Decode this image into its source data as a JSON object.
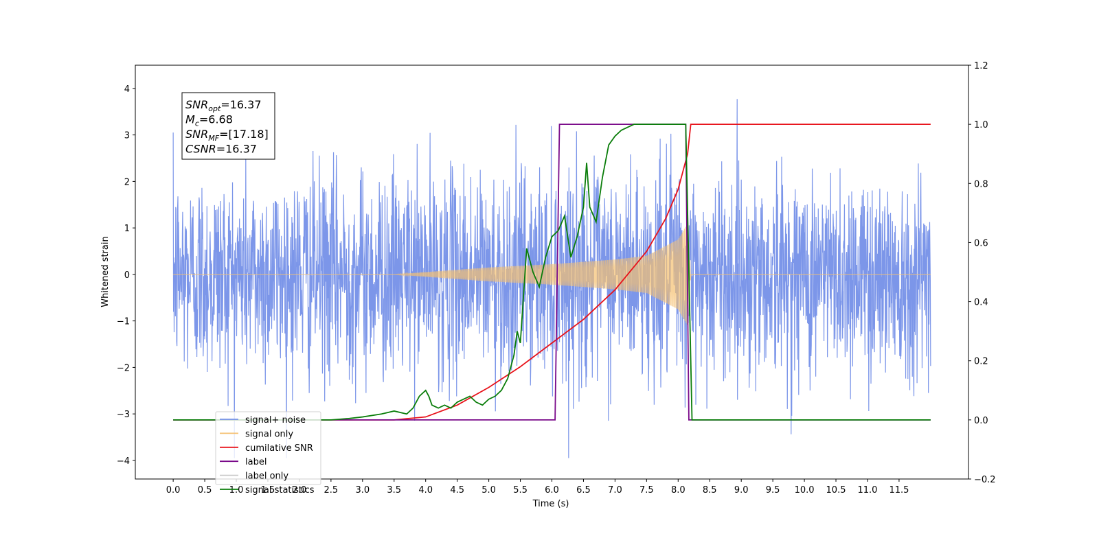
{
  "chart_data": {
    "type": "line",
    "xlabel": "Time (s)",
    "ylabel": "Whitened strain",
    "xlim": [
      -0.6,
      12.6
    ],
    "ylim": [
      -4.4,
      4.5
    ],
    "ylim_right": [
      -0.2,
      1.2
    ],
    "x_ticks": [
      "0.0",
      "0.5",
      "1.0",
      "1.5",
      "2.0",
      "2.5",
      "3.0",
      "3.5",
      "4.0",
      "4.5",
      "5.0",
      "5.5",
      "6.0",
      "6.5",
      "7.0",
      "7.5",
      "8.0",
      "8.5",
      "9.0",
      "9.5",
      "10.0",
      "10.5",
      "11.0",
      "11.5"
    ],
    "y_ticks": [
      "4",
      "3",
      "2",
      "1",
      "0",
      "−1",
      "−2",
      "−3",
      "−4"
    ],
    "y_ticks_right": [
      "1.2",
      "1.0",
      "0.8",
      "0.6",
      "0.4",
      "0.2",
      "0.0",
      "−0.2"
    ],
    "annotation": {
      "lines": [
        {
          "main": "SNR",
          "sub": "opt",
          "rest": "=16.37"
        },
        {
          "main": "M",
          "sub": "c",
          "rest": "=6.68"
        },
        {
          "main": "SNR",
          "sub": "MF",
          "rest": "=[17.18]"
        },
        {
          "main": "CSNR",
          "sub": "",
          "rest": "=16.37"
        }
      ]
    },
    "series": [
      {
        "name": "signal+ noise",
        "color": "#7590e8",
        "axis": "left",
        "noise_std": 1.1,
        "x_range": [
          0.0,
          12.0
        ]
      },
      {
        "name": "signal only",
        "color": "#f5c070",
        "axis": "left",
        "x_range": [
          0.0,
          12.0
        ],
        "merger_time": 8.15,
        "envelope": {
          "x": [
            0.0,
            3.5,
            4.0,
            5.0,
            6.0,
            7.0,
            7.5,
            8.0,
            8.15,
            8.2
          ],
          "y": [
            0.0,
            0.0,
            0.05,
            0.15,
            0.22,
            0.32,
            0.4,
            0.75,
            1.1,
            0.0
          ]
        }
      },
      {
        "name": "cumilative SNR",
        "color": "#e8121a",
        "axis": "right",
        "x": [
          0.0,
          3.5,
          4.0,
          4.5,
          5.0,
          5.5,
          6.0,
          6.5,
          7.0,
          7.5,
          7.8,
          8.0,
          8.1,
          8.15,
          8.2,
          12.0
        ],
        "y": [
          0.0,
          0.0,
          0.01,
          0.05,
          0.11,
          0.18,
          0.26,
          0.34,
          0.44,
          0.57,
          0.68,
          0.78,
          0.86,
          0.9,
          1.0,
          1.0
        ]
      },
      {
        "name": "label",
        "color": "#7a0a8a",
        "axis": "right",
        "x": [
          0.0,
          6.05,
          6.12,
          8.12,
          8.17,
          12.0
        ],
        "y": [
          0.0,
          0.0,
          1.0,
          1.0,
          0.0,
          0.0
        ]
      },
      {
        "name": "label only",
        "color": "#c8c8c8",
        "axis": "right",
        "x": [],
        "y": []
      },
      {
        "name": "signal statistics",
        "color": "#0a7d0a",
        "axis": "right",
        "x": [
          0.0,
          2.5,
          2.8,
          3.0,
          3.3,
          3.5,
          3.7,
          3.8,
          3.9,
          4.0,
          4.05,
          4.1,
          4.2,
          4.3,
          4.4,
          4.5,
          4.6,
          4.7,
          4.8,
          4.9,
          5.0,
          5.1,
          5.2,
          5.3,
          5.4,
          5.45,
          5.5,
          5.55,
          5.6,
          5.7,
          5.8,
          5.9,
          6.0,
          6.1,
          6.2,
          6.3,
          6.4,
          6.5,
          6.55,
          6.6,
          6.7,
          6.8,
          6.9,
          7.0,
          7.1,
          7.2,
          7.3,
          7.4,
          7.6,
          7.8,
          8.0,
          8.12,
          8.22,
          12.0
        ],
        "y": [
          0.0,
          0.0,
          0.005,
          0.01,
          0.02,
          0.03,
          0.02,
          0.04,
          0.08,
          0.1,
          0.08,
          0.05,
          0.04,
          0.05,
          0.04,
          0.06,
          0.07,
          0.08,
          0.06,
          0.05,
          0.07,
          0.08,
          0.1,
          0.14,
          0.22,
          0.3,
          0.26,
          0.42,
          0.58,
          0.5,
          0.45,
          0.55,
          0.62,
          0.64,
          0.69,
          0.55,
          0.62,
          0.72,
          0.87,
          0.72,
          0.67,
          0.82,
          0.93,
          0.96,
          0.98,
          0.99,
          1.0,
          1.0,
          1.0,
          1.0,
          1.0,
          1.0,
          0.0,
          0.0
        ]
      }
    ],
    "legend": {
      "placement": "lower-left"
    },
    "grid": false
  }
}
